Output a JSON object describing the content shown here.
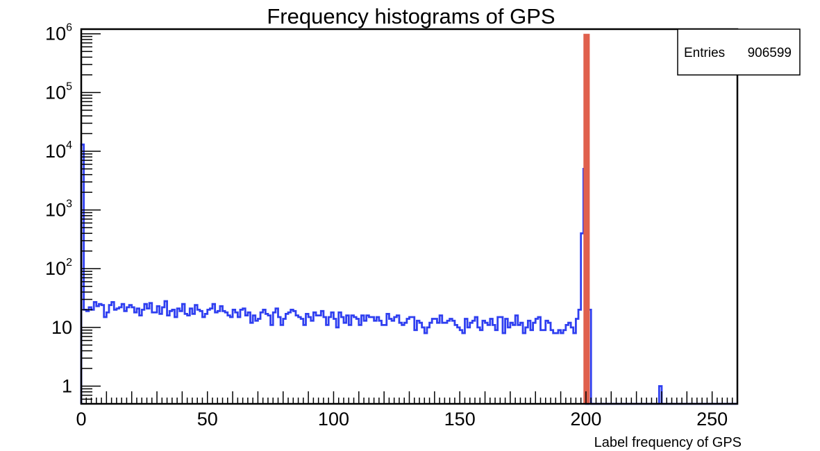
{
  "chart_data": {
    "type": "histogram",
    "title": "Frequency histograms of GPS",
    "xlabel": "Label frequency of GPS",
    "ylabel": "",
    "xlim": [
      0,
      260
    ],
    "ylim": [
      0.5,
      1200000
    ],
    "log_y": true,
    "grid": false,
    "bin_width": 1,
    "x_ticks": [
      0,
      50,
      100,
      150,
      200,
      250
    ],
    "y_ticks": [
      {
        "value": 1,
        "base": "1",
        "exp": ""
      },
      {
        "value": 10,
        "base": "10",
        "exp": ""
      },
      {
        "value": 100,
        "base": "10",
        "exp": "2"
      },
      {
        "value": 1000,
        "base": "10",
        "exp": "3"
      },
      {
        "value": 10000,
        "base": "10",
        "exp": "4"
      },
      {
        "value": 100000,
        "base": "10",
        "exp": "5"
      },
      {
        "value": 1000000,
        "base": "10",
        "exp": "6"
      }
    ],
    "stats_box": {
      "label": "Entries",
      "value": "906599"
    },
    "series": [
      {
        "color": "#2f3ff0",
        "x_start": 0,
        "values": [
          13000,
          20,
          19,
          22,
          20,
          27,
          23,
          25,
          24,
          15,
          18,
          24,
          27,
          20,
          21,
          22,
          25,
          19,
          22,
          24,
          22,
          18,
          21,
          16,
          20,
          25,
          21,
          26,
          18,
          18,
          23,
          17,
          22,
          28,
          16,
          19,
          20,
          15,
          21,
          19,
          25,
          17,
          16,
          21,
          17,
          24,
          20,
          19,
          15,
          17,
          20,
          21,
          25,
          18,
          19,
          23,
          19,
          18,
          16,
          15,
          20,
          18,
          15,
          20,
          21,
          16,
          18,
          12,
          16,
          13,
          14,
          18,
          20,
          17,
          16,
          11,
          18,
          21,
          15,
          11,
          14,
          17,
          18,
          20,
          19,
          16,
          15,
          14,
          11,
          17,
          15,
          13,
          18,
          16,
          16,
          19,
          15,
          11,
          15,
          18,
          14,
          10,
          18,
          15,
          12,
          16,
          11,
          16,
          15,
          14,
          11,
          16,
          13,
          16,
          15,
          15,
          13,
          15,
          13,
          11,
          11,
          17,
          14,
          13,
          15,
          16,
          12,
          11,
          12,
          14,
          15,
          15,
          9,
          13,
          12,
          10,
          8,
          10,
          12,
          14,
          14,
          12,
          16,
          12,
          12,
          13,
          14,
          13,
          11,
          10,
          9,
          8,
          14,
          10,
          12,
          13,
          15,
          10,
          9,
          13,
          12,
          11,
          14,
          11,
          9,
          15,
          15,
          8,
          14,
          10,
          12,
          11,
          16,
          11,
          12,
          8,
          10,
          13,
          9,
          12,
          14,
          15,
          9,
          9,
          13,
          12,
          9,
          8,
          8,
          9,
          8,
          9,
          11,
          12,
          10,
          8,
          14,
          20,
          400,
          5000
        ],
        "tail": [
          {
            "x": 201,
            "value": 20
          },
          {
            "x": 229,
            "value": 1
          }
        ]
      },
      {
        "color": "#e0604d",
        "bars": [
          {
            "x": 199,
            "width": 2.5,
            "value": 1000000
          }
        ]
      }
    ]
  }
}
